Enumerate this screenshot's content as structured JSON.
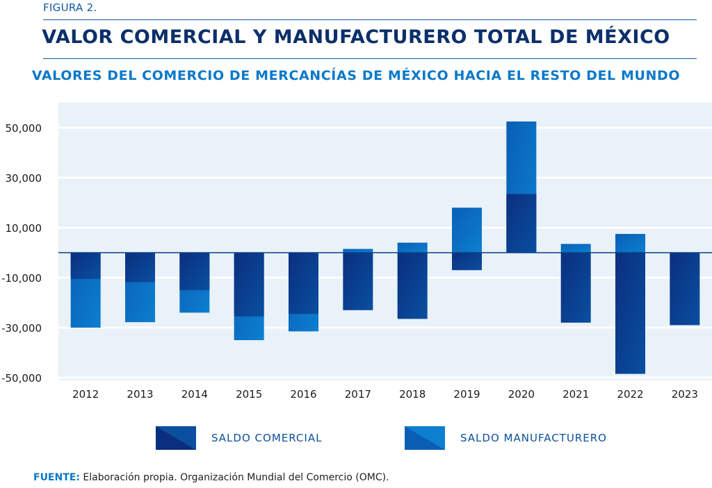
{
  "figure_label": "FIGURA 2.",
  "chart_data": {
    "type": "bar",
    "title": "VALOR COMERCIAL Y MANUFACTURERO TOTAL DE MÉXICO",
    "subtitle": "VALORES DEL COMERCIO DE MERCANCÍAS DE MÉXICO HACIA EL RESTO DEL MUNDO",
    "categories": [
      "2012",
      "2013",
      "2014",
      "2015",
      "2016",
      "2017",
      "2018",
      "2019",
      "2020",
      "2021",
      "2022",
      "2023"
    ],
    "series": [
      {
        "name": "SALDO COMERCIAL",
        "values": [
          -10500,
          -11800,
          -15000,
          -25500,
          -24500,
          -23000,
          -26500,
          -7000,
          23500,
          -28000,
          -48500,
          -29000
        ],
        "color": "#0b2f7e"
      },
      {
        "name": "SALDO MANUFACTURERO",
        "values": [
          -30000,
          -27800,
          -24000,
          -35000,
          -31500,
          1500,
          4000,
          18000,
          52500,
          3500,
          7500,
          -29000
        ],
        "color": "#0a6cc0"
      }
    ],
    "yticks": [
      "50,000",
      "30,000",
      "10,000",
      "-10,000",
      "-30,000",
      "-50,000"
    ],
    "ylim": [
      -50000,
      60000
    ],
    "grid": true,
    "legend": "bottom"
  },
  "source": {
    "key": "FUENTE:",
    "text": " Elaboración propia. Organización Mundial del Comercio (OMC)."
  }
}
